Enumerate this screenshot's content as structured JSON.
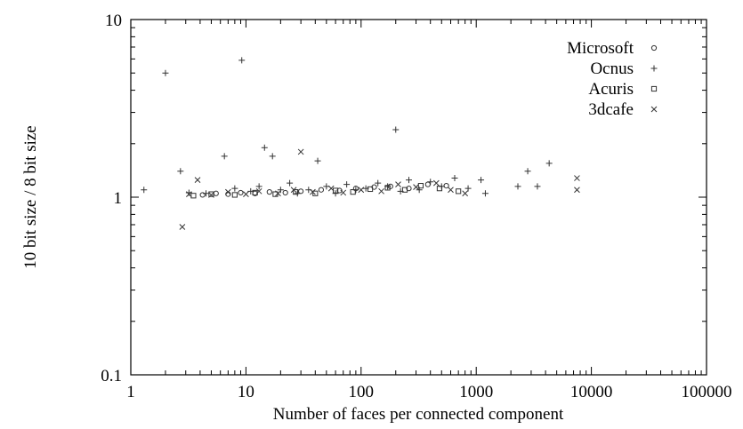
{
  "chart_data": {
    "type": "scatter",
    "xlabel": "Number of faces per connected component",
    "ylabel": "10 bit size / 8 bit size",
    "xscale": "log",
    "yscale": "log",
    "xlim": [
      1,
      100000
    ],
    "ylim": [
      0.1,
      10
    ],
    "x_tick_labels": [
      "1",
      "10",
      "100",
      "1000",
      "10000",
      "100000"
    ],
    "y_tick_labels": [
      "0.1",
      "1",
      "10"
    ],
    "x_ticks": [
      1,
      10,
      100,
      1000,
      10000,
      100000
    ],
    "y_ticks": [
      0.1,
      1,
      10
    ],
    "grid": false,
    "legend_position": "top-right",
    "series": [
      {
        "name": "Microsoft",
        "marker": "circle",
        "points": [
          [
            4.2,
            1.03
          ],
          [
            5.5,
            1.05
          ],
          [
            7,
            1.04
          ],
          [
            9,
            1.06
          ],
          [
            12,
            1.05
          ],
          [
            16,
            1.07
          ],
          [
            22,
            1.06
          ],
          [
            30,
            1.08
          ],
          [
            45,
            1.1
          ],
          [
            65,
            1.09
          ],
          [
            90,
            1.12
          ],
          [
            130,
            1.14
          ],
          [
            180,
            1.15
          ],
          [
            260,
            1.12
          ],
          [
            380,
            1.18
          ],
          [
            550,
            1.16
          ]
        ]
      },
      {
        "name": "Ocnus",
        "marker": "plus",
        "points": [
          [
            1.3,
            1.1
          ],
          [
            2,
            5
          ],
          [
            2.7,
            1.4
          ],
          [
            3.2,
            1.06
          ],
          [
            4.5,
            1.05
          ],
          [
            6.5,
            1.7
          ],
          [
            8,
            1.12
          ],
          [
            9.2,
            5.9
          ],
          [
            11,
            1.08
          ],
          [
            13,
            1.15
          ],
          [
            14.5,
            1.9
          ],
          [
            17,
            1.7
          ],
          [
            20,
            1.1
          ],
          [
            24,
            1.2
          ],
          [
            28,
            1.05
          ],
          [
            35,
            1.1
          ],
          [
            42,
            1.6
          ],
          [
            50,
            1.15
          ],
          [
            60,
            1.05
          ],
          [
            75,
            1.18
          ],
          [
            90,
            1.1
          ],
          [
            110,
            1.12
          ],
          [
            140,
            1.2
          ],
          [
            170,
            1.15
          ],
          [
            200,
            2.4
          ],
          [
            220,
            1.08
          ],
          [
            260,
            1.25
          ],
          [
            320,
            1.1
          ],
          [
            400,
            1.22
          ],
          [
            500,
            1.15
          ],
          [
            650,
            1.28
          ],
          [
            850,
            1.12
          ],
          [
            1100,
            1.25
          ],
          [
            1200,
            1.05
          ],
          [
            2300,
            1.15
          ],
          [
            2800,
            1.4
          ],
          [
            3400,
            1.15
          ],
          [
            4300,
            1.55
          ]
        ]
      },
      {
        "name": "Acuris",
        "marker": "square",
        "points": [
          [
            3.5,
            1.02
          ],
          [
            5,
            1.04
          ],
          [
            8,
            1.03
          ],
          [
            12,
            1.06
          ],
          [
            18,
            1.04
          ],
          [
            27,
            1.07
          ],
          [
            40,
            1.05
          ],
          [
            60,
            1.09
          ],
          [
            85,
            1.07
          ],
          [
            120,
            1.11
          ],
          [
            170,
            1.13
          ],
          [
            240,
            1.1
          ],
          [
            330,
            1.16
          ],
          [
            480,
            1.12
          ],
          [
            700,
            1.08
          ]
        ]
      },
      {
        "name": "3dcafe",
        "marker": "cross",
        "points": [
          [
            2.8,
            0.68
          ],
          [
            3.2,
            1.04
          ],
          [
            3.8,
            1.25
          ],
          [
            5,
            1.03
          ],
          [
            7,
            1.07
          ],
          [
            10,
            1.04
          ],
          [
            13,
            1.08
          ],
          [
            19,
            1.05
          ],
          [
            26,
            1.1
          ],
          [
            30,
            1.8
          ],
          [
            38,
            1.07
          ],
          [
            55,
            1.12
          ],
          [
            70,
            1.06
          ],
          [
            100,
            1.1
          ],
          [
            150,
            1.08
          ],
          [
            210,
            1.18
          ],
          [
            300,
            1.14
          ],
          [
            450,
            1.2
          ],
          [
            600,
            1.1
          ],
          [
            800,
            1.05
          ],
          [
            7500,
            1.28
          ],
          [
            7500,
            1.1
          ]
        ]
      }
    ]
  }
}
